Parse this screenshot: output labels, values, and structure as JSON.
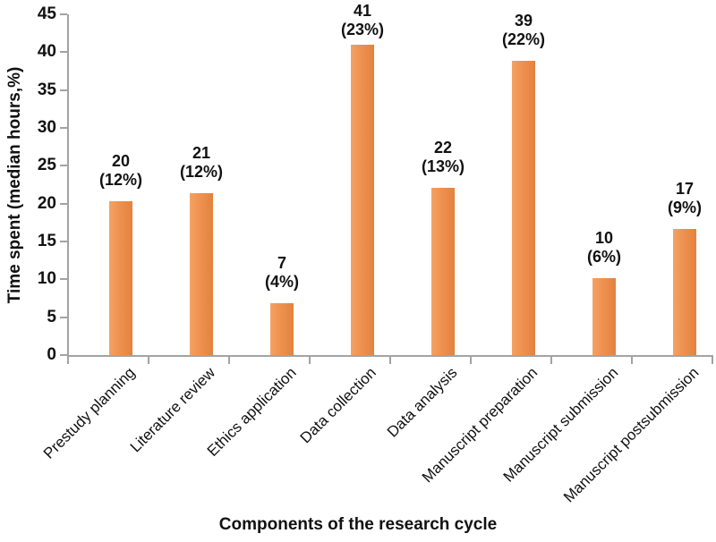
{
  "chart_data": {
    "type": "bar",
    "title": "",
    "xlabel": "Components of the research cycle",
    "ylabel": "Time spent (median hours,%)",
    "categories": [
      "Prestudy planning",
      "Literature review",
      "Ethics application",
      "Data collection",
      "Data analysis",
      "Manuscript preparation",
      "Manuscript submission",
      "Manuscript postsubmission"
    ],
    "series": [
      {
        "name": "Time spent (median hours)",
        "values": [
          20,
          21,
          7,
          41,
          22,
          39,
          10,
          17
        ],
        "percents": [
          12,
          12,
          4,
          23,
          13,
          22,
          6,
          9
        ]
      }
    ],
    "bar_labels": [
      [
        "20",
        "(12%)"
      ],
      [
        "21",
        "(12%)"
      ],
      [
        "7",
        "(4%)"
      ],
      [
        "41",
        "(23%)"
      ],
      [
        "22",
        "(13%)"
      ],
      [
        "39",
        "(22%)"
      ],
      [
        "10",
        "(6%)"
      ],
      [
        "17",
        "(9%)"
      ]
    ],
    "bar_heights_as_drawn": [
      20.3,
      21.4,
      6.8,
      41.0,
      22.1,
      38.9,
      10.2,
      16.6
    ],
    "ylim": [
      0,
      45
    ],
    "yticks": [
      0,
      5,
      10,
      15,
      20,
      25,
      30,
      35,
      40,
      45
    ],
    "grid": false,
    "legend": false,
    "bar_color": "#EE9150",
    "bar_color_light": "#F4A263",
    "bar_color_dark": "#E2823E",
    "axis_color": "#A3A3A3",
    "text_color": "#111111"
  }
}
